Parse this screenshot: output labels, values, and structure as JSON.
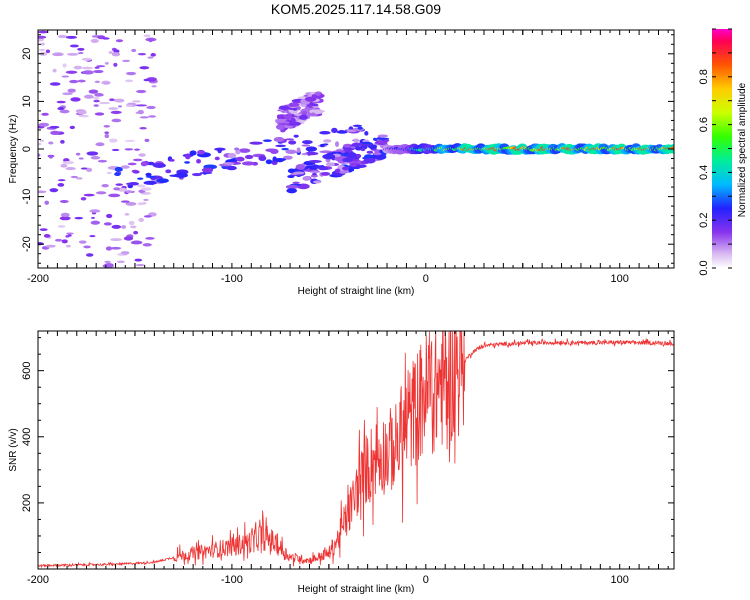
{
  "figure": {
    "title": "KOM5.2025.117.14.58.G09"
  },
  "chart_data": [
    {
      "type": "heatmap",
      "title": "KOM5.2025.117.14.58.G09",
      "xlabel": "Height of straight line (km)",
      "ylabel": "Frequency (Hz)",
      "xlim": [
        -200,
        128
      ],
      "ylim": [
        -25,
        25
      ],
      "xticks": [
        -200,
        -100,
        0,
        100
      ],
      "yticks": [
        -20,
        -10,
        0,
        10,
        20
      ],
      "grid": false,
      "features": [
        {
          "name": "scattered low-amplitude speckle",
          "x_range": [
            -200,
            -140
          ],
          "freq_range": [
            -25,
            25
          ],
          "amplitude": 0.1
        },
        {
          "name": "diagonal blue-violet band",
          "x_from": -160,
          "x_to": -30,
          "freq_from": -6,
          "freq_to": 3,
          "amplitude": 0.15
        },
        {
          "name": "upper branch",
          "x_from": -75,
          "x_to": -55,
          "freq_from": 6,
          "freq_to": 10,
          "amplitude": 0.1
        },
        {
          "name": "second diagonal branch",
          "x_from": -70,
          "x_to": -20,
          "freq_from": -7,
          "freq_to": 1,
          "amplitude": 0.15
        },
        {
          "name": "strong carrier line near 0 Hz",
          "x_from": -20,
          "x_to": 128,
          "freq": 0,
          "amplitude": 0.9
        }
      ],
      "colorbar": {
        "label": "Normalized spectral amplitude",
        "ticks": [
          0.0,
          0.2,
          0.4,
          0.6,
          0.8
        ],
        "range": [
          0,
          1
        ]
      }
    },
    {
      "type": "line",
      "title": "",
      "xlabel": "Height of straight line (km)",
      "ylabel": "SNR (v/v)",
      "xlim": [
        -200,
        128
      ],
      "ylim": [
        0,
        720
      ],
      "xticks": [
        -200,
        -100,
        0,
        100
      ],
      "yticks": [
        200,
        400,
        600
      ],
      "grid": false,
      "series": [
        {
          "name": "SNR",
          "color": "#ee3333",
          "x": [
            -200,
            -180,
            -160,
            -140,
            -130,
            -120,
            -110,
            -100,
            -90,
            -85,
            -80,
            -75,
            -70,
            -60,
            -50,
            -45,
            -40,
            -35,
            -30,
            -25,
            -20,
            -15,
            -10,
            -5,
            0,
            5,
            10,
            15,
            20,
            25,
            30,
            40,
            50,
            60,
            70,
            80,
            90,
            100,
            110,
            120,
            128
          ],
          "values": [
            10,
            12,
            14,
            20,
            35,
            45,
            55,
            65,
            80,
            95,
            85,
            60,
            35,
            25,
            45,
            90,
            160,
            240,
            300,
            330,
            340,
            360,
            420,
            470,
            510,
            530,
            550,
            580,
            630,
            660,
            675,
            680,
            682,
            684,
            685,
            684,
            684,
            685,
            684,
            683,
            682
          ]
        }
      ]
    }
  ]
}
